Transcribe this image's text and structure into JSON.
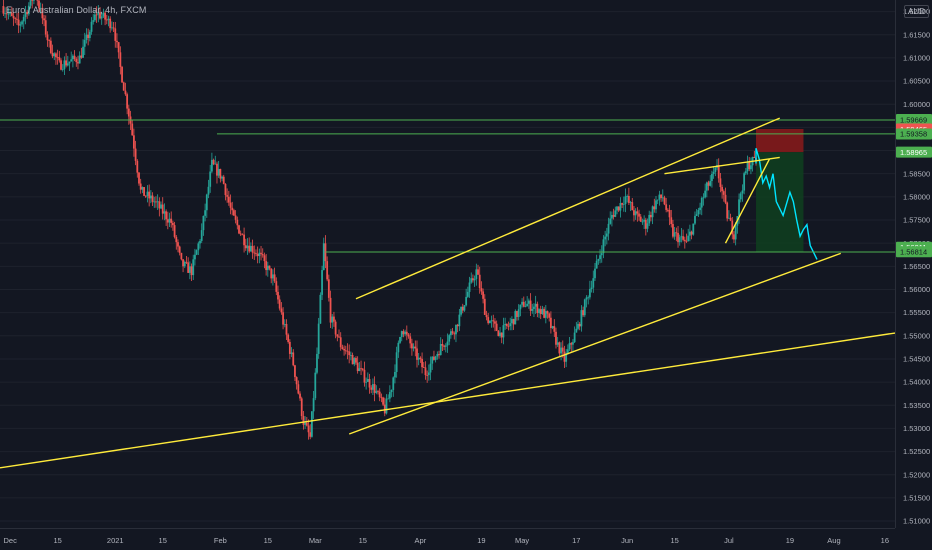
{
  "header": {
    "symbol_title": "Euro / Australian Dollar, 4h, FXCM",
    "currency": "AUD"
  },
  "colors": {
    "background": "#131722",
    "up_candle": "#26a69a",
    "down_candle": "#ef5350",
    "trendline": "#ffeb3b",
    "level": "#4caf50",
    "projection": "#00e5ff",
    "stop_zone": "#8b1a1a",
    "target_zone": "#0f3d1f",
    "axis_text": "#b2b5be"
  },
  "chart_data": {
    "type": "candlestick",
    "y_axis": {
      "ticks": [
        "1.62000",
        "1.61500",
        "1.61000",
        "1.60500",
        "1.60000",
        "1.59500",
        "1.59000",
        "1.58500",
        "1.58000",
        "1.57500",
        "1.57000",
        "1.56500",
        "1.56000",
        "1.55500",
        "1.55000",
        "1.54500",
        "1.54000",
        "1.53500",
        "1.53000",
        "1.52500",
        "1.52000",
        "1.51500",
        "1.51000"
      ],
      "range": [
        1.5085,
        1.6225
      ]
    },
    "x_axis": {
      "labels": [
        "Dec",
        "15",
        "2021",
        "15",
        "Feb",
        "15",
        "Mar",
        "15",
        "Apr",
        "19",
        "May",
        "17",
        "Jun",
        "15",
        "Jul",
        "19",
        "Aug",
        "16"
      ],
      "range": [
        "2020-11-28",
        "2021-08-19"
      ]
    },
    "price_path": [
      [
        "2020-11-29",
        1.6212
      ],
      [
        "2020-12-04",
        1.6168
      ],
      [
        "2020-12-09",
        1.6242
      ],
      [
        "2020-12-13",
        1.6128
      ],
      [
        "2020-12-16",
        1.6085
      ],
      [
        "2020-12-22",
        1.61
      ],
      [
        "2020-12-27",
        1.6198
      ],
      [
        "2021-01-01",
        1.617
      ],
      [
        "2021-01-03",
        1.6078
      ],
      [
        "2021-01-06",
        1.596
      ],
      [
        "2021-01-09",
        1.5812
      ],
      [
        "2021-01-13",
        1.579
      ],
      [
        "2021-01-18",
        1.5745
      ],
      [
        "2021-01-21",
        1.5655
      ],
      [
        "2021-01-24",
        1.564
      ],
      [
        "2021-01-27",
        1.5725
      ],
      [
        "2021-01-30",
        1.587
      ],
      [
        "2021-02-02",
        1.5842
      ],
      [
        "2021-02-05",
        1.576
      ],
      [
        "2021-02-09",
        1.57
      ],
      [
        "2021-02-13",
        1.5675
      ],
      [
        "2021-02-17",
        1.5625
      ],
      [
        "2021-02-20",
        1.553
      ],
      [
        "2021-02-23",
        1.544
      ],
      [
        "2021-02-26",
        1.5315
      ],
      [
        "2021-02-28",
        1.528
      ],
      [
        "2021-03-02",
        1.546
      ],
      [
        "2021-03-04",
        1.5695
      ],
      [
        "2021-03-06",
        1.554
      ],
      [
        "2021-03-09",
        1.548
      ],
      [
        "2021-03-12",
        1.5455
      ],
      [
        "2021-03-16",
        1.541
      ],
      [
        "2021-03-19",
        1.5385
      ],
      [
        "2021-03-22",
        1.534
      ],
      [
        "2021-03-24",
        1.539
      ],
      [
        "2021-03-27",
        1.552
      ],
      [
        "2021-03-30",
        1.5475
      ],
      [
        "2021-04-03",
        1.542
      ],
      [
        "2021-04-07",
        1.547
      ],
      [
        "2021-04-12",
        1.552
      ],
      [
        "2021-04-16",
        1.5605
      ],
      [
        "2021-04-18",
        1.564
      ],
      [
        "2021-04-21",
        1.554
      ],
      [
        "2021-04-25",
        1.5505
      ],
      [
        "2021-04-28",
        1.5525
      ],
      [
        "2021-05-02",
        1.557
      ],
      [
        "2021-05-06",
        1.556
      ],
      [
        "2021-05-09",
        1.554
      ],
      [
        "2021-05-12",
        1.548
      ],
      [
        "2021-05-14",
        1.5448
      ],
      [
        "2021-05-18",
        1.552
      ],
      [
        "2021-05-22",
        1.5615
      ],
      [
        "2021-05-25",
        1.569
      ],
      [
        "2021-05-28",
        1.576
      ],
      [
        "2021-06-01",
        1.58
      ],
      [
        "2021-06-04",
        1.576
      ],
      [
        "2021-06-07",
        1.574
      ],
      [
        "2021-06-10",
        1.579
      ],
      [
        "2021-06-12",
        1.58
      ],
      [
        "2021-06-15",
        1.572
      ],
      [
        "2021-06-19",
        1.57
      ],
      [
        "2021-06-22",
        1.576
      ],
      [
        "2021-06-25",
        1.582
      ],
      [
        "2021-06-28",
        1.586
      ],
      [
        "2021-07-01",
        1.576
      ],
      [
        "2021-07-03",
        1.572
      ],
      [
        "2021-07-05",
        1.581
      ],
      [
        "2021-07-07",
        1.5868
      ],
      [
        "2021-07-09",
        1.588
      ]
    ],
    "projection_path": [
      [
        "2021-07-09",
        1.5872
      ],
      [
        "2021-07-09",
        1.5905
      ],
      [
        "2021-07-10",
        1.588
      ],
      [
        "2021-07-11",
        1.583
      ],
      [
        "2021-07-12",
        1.5845
      ],
      [
        "2021-07-13",
        1.582
      ],
      [
        "2021-07-14",
        1.585
      ],
      [
        "2021-07-15",
        1.579
      ],
      [
        "2021-07-17",
        1.576
      ],
      [
        "2021-07-18",
        1.5785
      ],
      [
        "2021-07-19",
        1.581
      ],
      [
        "2021-07-20",
        1.579
      ],
      [
        "2021-07-21",
        1.575
      ],
      [
        "2021-07-22",
        1.5715
      ],
      [
        "2021-07-23",
        1.573
      ],
      [
        "2021-07-24",
        1.574
      ],
      [
        "2021-07-25",
        1.5695
      ],
      [
        "2021-07-27",
        1.5665
      ]
    ],
    "trendlines": [
      [
        [
          "2020-11-28",
          1.5215
        ],
        [
          "2021-08-19",
          1.5506
        ]
      ],
      [
        [
          "2021-03-11",
          1.5288
        ],
        [
          "2021-08-03",
          1.5678
        ]
      ],
      [
        [
          "2021-03-13",
          1.558
        ],
        [
          "2021-07-16",
          1.597
        ]
      ],
      [
        [
          "2021-06-12",
          1.585
        ],
        [
          "2021-07-16",
          1.5885
        ]
      ],
      [
        [
          "2021-06-30",
          1.57
        ],
        [
          "2021-07-13",
          1.5882
        ]
      ]
    ],
    "levels": [
      {
        "value": 1.5966,
        "from": "2020-11-28"
      },
      {
        "value": 1.5936,
        "from": "2021-01-31"
      },
      {
        "value": 1.5681,
        "from": "2021-03-04"
      }
    ],
    "position_box": {
      "from": "2021-07-09",
      "to": "2021-07-23",
      "entry": 1.58965,
      "stop": 1.59465,
      "target": 1.56814
    },
    "price_badges": [
      {
        "label": "1.59669",
        "value": 1.59669,
        "bg": "#4caf50",
        "fg": "#131722"
      },
      {
        "label": "1.59465",
        "value": 1.59465,
        "bg": "#ef5350",
        "fg": "#ffffff"
      },
      {
        "label": "1.59358",
        "value": 1.59358,
        "bg": "#4caf50",
        "fg": "#131722"
      },
      {
        "label": "1.58965",
        "value": 1.58965,
        "bg": "#4caf50",
        "fg": "#ffffff"
      },
      {
        "label": "1.56911",
        "value": 1.56911,
        "bg": "#4caf50",
        "fg": "#ffffff"
      },
      {
        "label": "1.56814",
        "value": 1.56814,
        "bg": "#4caf50",
        "fg": "#131722"
      }
    ]
  }
}
